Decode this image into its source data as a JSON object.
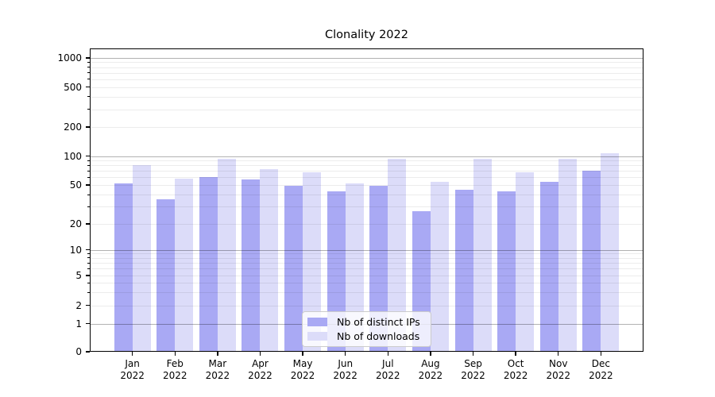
{
  "chart_data": {
    "type": "bar",
    "title": "Clonality 2022",
    "months": [
      "Jan",
      "Feb",
      "Mar",
      "Apr",
      "May",
      "Jun",
      "Jul",
      "Aug",
      "Sep",
      "Oct",
      "Nov",
      "Dec"
    ],
    "year": "2022",
    "categories": [
      "Jan 2022",
      "Feb 2022",
      "Mar 2022",
      "Apr 2022",
      "May 2022",
      "Jun 2022",
      "Jul 2022",
      "Aug 2022",
      "Sep 2022",
      "Oct 2022",
      "Nov 2022",
      "Dec 2022"
    ],
    "series": [
      {
        "name": "Nb of distinct IPs",
        "color": "#a9a9f4",
        "values": [
          52,
          36,
          60,
          57,
          49,
          43,
          49,
          27,
          45,
          43,
          54,
          70
        ]
      },
      {
        "name": "Nb of downloads",
        "color": "#dcdcf9",
        "values": [
          80,
          58,
          94,
          73,
          68,
          52,
          94,
          54,
          93,
          68,
          93,
          106
        ]
      }
    ],
    "y_ticks": [
      0,
      1,
      2,
      5,
      10,
      20,
      50,
      100,
      200,
      500,
      1000
    ],
    "y_scale": "asinh (quasi-log)",
    "ylim": [
      0,
      1240
    ],
    "grid": true,
    "legend_position": "lower center",
    "colors": {
      "background": "#ffffff",
      "axis": "#000000",
      "major_grid": "#b3b3b3",
      "minor_grid": "#ebebeb"
    }
  }
}
